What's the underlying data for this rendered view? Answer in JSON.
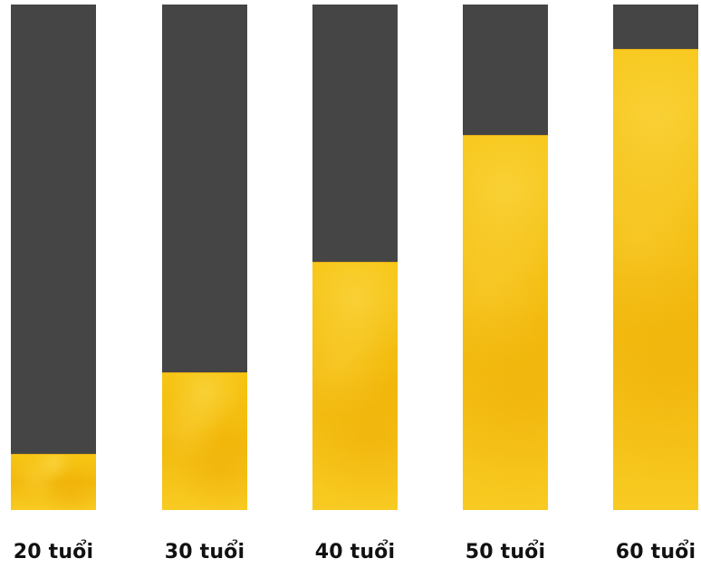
{
  "chart_data": {
    "type": "bar",
    "categories": [
      "20 tuổi",
      "30 tuổi",
      "40 tuổi",
      "50 tuổi",
      "60 tuổi"
    ],
    "values": [
      11,
      27,
      49,
      74,
      91
    ],
    "ylim": [
      0,
      100
    ],
    "grid": false,
    "legend": "none",
    "colors": {
      "track": "#454545",
      "fill": "#f5c012",
      "label": "#111111"
    }
  }
}
